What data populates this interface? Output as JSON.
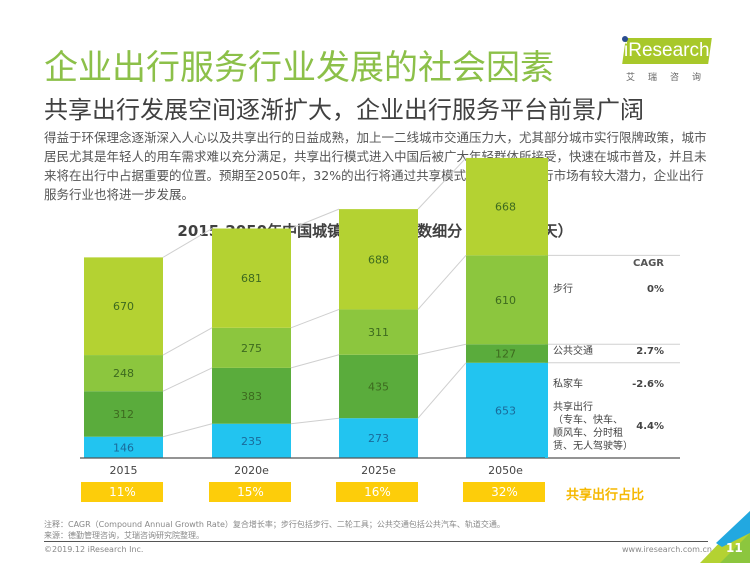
{
  "header": {
    "title": "企业出行服务行业发展的社会因素",
    "subtitle": "共享出行发展空间逐渐扩大，企业出行服务平台前景广阔",
    "body": "得益于环保理念逐渐深入人心以及共享出行的日益成熟，加上一二线城市交通压力大，尤其部分城市实行限牌政策，城市居民尤其是年轻人的用车需求难以充分满足，共享出行模式进入中国后被广大年轻群体所接受，快速在城市普及，并且未来将在出行中占据重要的位置。预期至2050年，32%的出行将通过共享模式完成，共享出行市场有较大潜力，企业出行服务行业也将进一步发展。"
  },
  "logo": {
    "brand": "iResearch",
    "sub": "艾瑞咨询"
  },
  "chart_data": {
    "type": "bar",
    "stacked": true,
    "title": "2015-2050年中国城镇人口出行次数细分（百万人次/天）",
    "categories": [
      "2015",
      "2020e",
      "2025e",
      "2050e"
    ],
    "series": [
      {
        "name": "共享出行（专车、快车、顺风车、分时租赁、无人驾驶等）",
        "values": [
          146,
          235,
          273,
          653
        ],
        "color": "#22c4f0",
        "cagr": "4.4%"
      },
      {
        "name": "私家车",
        "values": [
          312,
          383,
          435,
          127
        ],
        "color": "#5aac3c",
        "cagr": "-2.6%"
      },
      {
        "name": "公共交通",
        "values": [
          248,
          275,
          311,
          610
        ],
        "color": "#8cc63e",
        "cagr": "2.7%"
      },
      {
        "name": "步行",
        "values": [
          670,
          681,
          688,
          668
        ],
        "color": "#b4d232",
        "cagr": "0%"
      }
    ],
    "legend_header": "CAGR",
    "legend_placement": "right",
    "legend_labels": {
      "shared_lines": [
        "共享出行",
        "（专车、快车、",
        "顺风车、分时租",
        "赁、无人驾驶等）"
      ]
    },
    "shared_share": {
      "label": "共享出行占比",
      "values": [
        "11%",
        "15%",
        "16%",
        "32%"
      ],
      "color": "#fdcd0a"
    },
    "xlabel": "",
    "ylabel": "",
    "grid": false
  },
  "footer": {
    "note": "注释：CAGR（Compound Annual Growth Rate）复合增长率；步行包括步行、二轮工具；公共交通包括公共汽车、轨道交通。",
    "source": "来源：德勤管理咨询，艾瑞咨询研究院整理。",
    "copyright": "©2019.12 iResearch Inc.",
    "website": "www.iresearch.com.cn",
    "page": "11"
  }
}
